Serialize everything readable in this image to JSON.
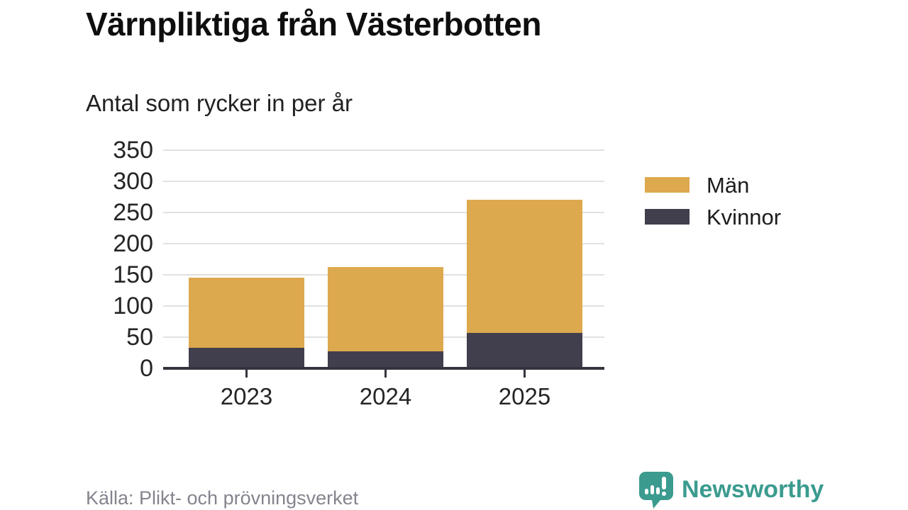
{
  "title": "Värnpliktiga från Västerbotten",
  "subtitle": "Antal som rycker in per år",
  "source": "Källa: Plikt- och prövningsverket",
  "brand": {
    "name": "Newsworthy",
    "color": "#3b9b8f"
  },
  "colors": {
    "men": "#dda94e",
    "women": "#413f4e",
    "grid": "#e1e1e1",
    "axis": "#35343e",
    "muted_text": "#85848e"
  },
  "legend": {
    "items": [
      {
        "label": "Män",
        "color": "#dda94e"
      },
      {
        "label": "Kvinnor",
        "color": "#413f4e"
      }
    ]
  },
  "chart_data": {
    "type": "bar",
    "stacked": true,
    "title": "Värnpliktiga från Västerbotten",
    "subtitle": "Antal som rycker in per år",
    "categories": [
      "2023",
      "2024",
      "2025"
    ],
    "series": [
      {
        "name": "Kvinnor",
        "color": "#413f4e",
        "values": [
          33,
          27,
          57
        ]
      },
      {
        "name": "Män",
        "color": "#dda94e",
        "values": [
          113,
          136,
          214
        ]
      }
    ],
    "totals": [
      146,
      163,
      271
    ],
    "xlabel": "",
    "ylabel": "",
    "ylim": [
      0,
      350
    ],
    "yticks": [
      0,
      50,
      100,
      150,
      200,
      250,
      300,
      350
    ],
    "grid": true,
    "legend_position": "right"
  }
}
